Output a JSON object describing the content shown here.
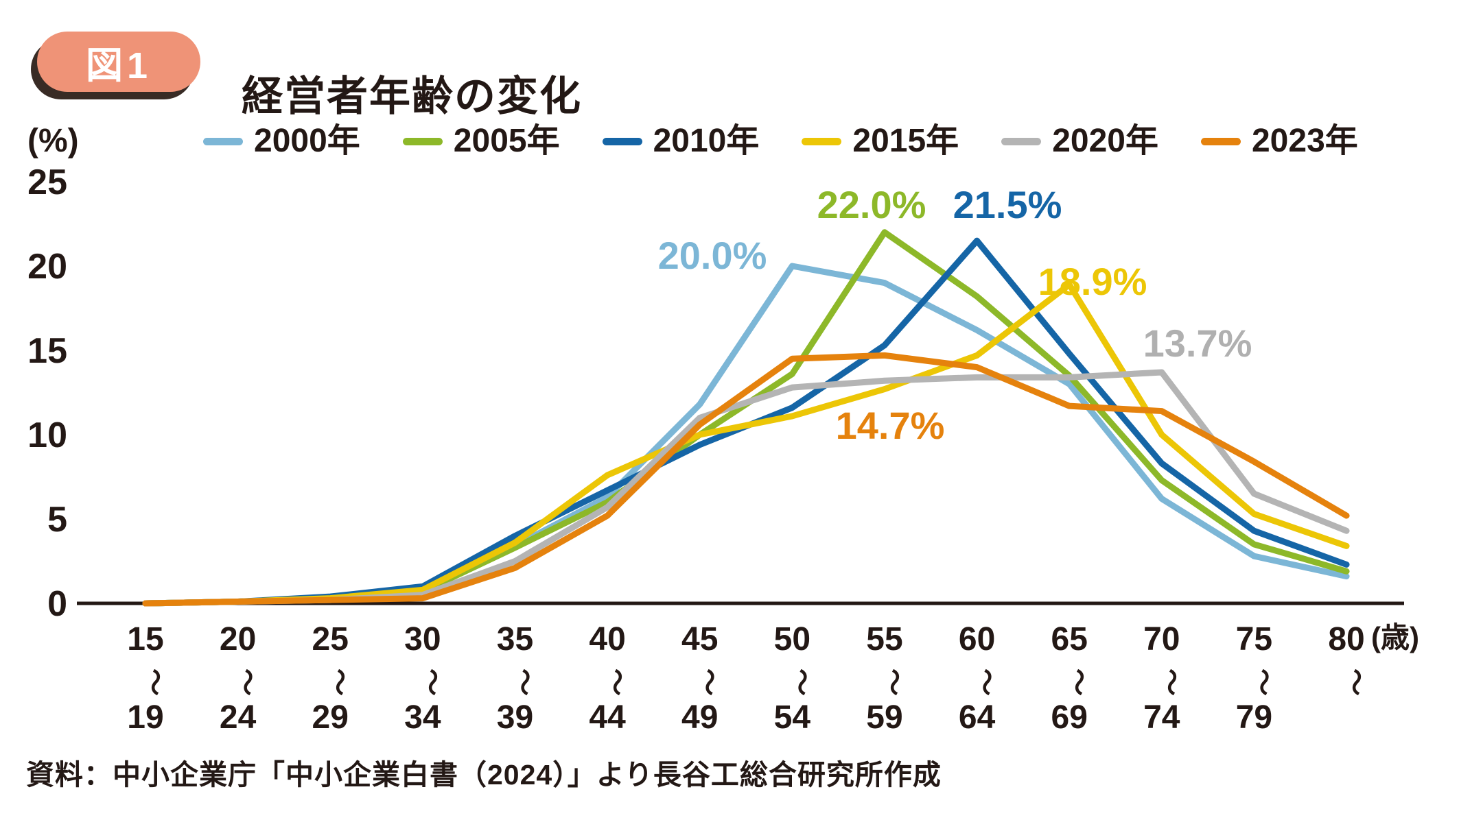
{
  "figure_badge": "図1",
  "title": "経営者年齢の変化",
  "source": "資料：中小企業庁「中小企業白書（2024）」より長谷工総合研究所作成",
  "y_axis": {
    "unit": "(%)",
    "ticks": [
      25,
      20,
      15,
      10,
      5,
      0
    ],
    "min": 0,
    "max": 25
  },
  "x_axis": {
    "unit": "(歳)",
    "range_symbol": "〜",
    "categories": [
      {
        "from": "15",
        "to": "19"
      },
      {
        "from": "20",
        "to": "24"
      },
      {
        "from": "25",
        "to": "29"
      },
      {
        "from": "30",
        "to": "34"
      },
      {
        "from": "35",
        "to": "39"
      },
      {
        "from": "40",
        "to": "44"
      },
      {
        "from": "45",
        "to": "49"
      },
      {
        "from": "50",
        "to": "54"
      },
      {
        "from": "55",
        "to": "59"
      },
      {
        "from": "60",
        "to": "64"
      },
      {
        "from": "65",
        "to": "69"
      },
      {
        "from": "70",
        "to": "74"
      },
      {
        "from": "75",
        "to": "79"
      },
      {
        "from": "80",
        "to": ""
      }
    ]
  },
  "chart_data": {
    "type": "line",
    "title": "経営者年齢の変化",
    "ylabel": "(%)",
    "xlabel": "(歳)",
    "ylim": [
      0,
      25
    ],
    "grid": false,
    "legend_position": "top",
    "categories": [
      "15〜19",
      "20〜24",
      "25〜29",
      "30〜34",
      "35〜39",
      "40〜44",
      "45〜49",
      "50〜54",
      "55〜59",
      "60〜64",
      "65〜69",
      "70〜74",
      "75〜79",
      "80〜"
    ],
    "series": [
      {
        "name": "2000年",
        "color": "#7cb6d6",
        "values": [
          0.0,
          0.1,
          0.3,
          0.7,
          3.4,
          6.3,
          11.8,
          20.0,
          19.0,
          16.2,
          13.0,
          6.2,
          2.8,
          1.6
        ]
      },
      {
        "name": "2005年",
        "color": "#8db829",
        "values": [
          0.0,
          0.1,
          0.3,
          0.7,
          3.3,
          6.0,
          10.0,
          13.6,
          22.0,
          18.2,
          13.5,
          7.3,
          3.5,
          1.9
        ]
      },
      {
        "name": "2010年",
        "color": "#1565a6",
        "values": [
          0.0,
          0.1,
          0.4,
          1.0,
          4.0,
          6.7,
          9.4,
          11.6,
          15.3,
          21.5,
          14.8,
          8.3,
          4.3,
          2.3
        ]
      },
      {
        "name": "2015年",
        "color": "#ecc606",
        "values": [
          0.0,
          0.1,
          0.3,
          0.8,
          3.6,
          7.6,
          10.0,
          11.1,
          12.7,
          14.7,
          18.9,
          10.0,
          5.3,
          3.4
        ]
      },
      {
        "name": "2020年",
        "color": "#b4b4b4",
        "values": [
          0.0,
          0.1,
          0.2,
          0.5,
          2.5,
          5.7,
          11.0,
          12.8,
          13.2,
          13.4,
          13.4,
          13.7,
          6.5,
          4.3
        ]
      },
      {
        "name": "2023年",
        "color": "#e5820d",
        "values": [
          0.0,
          0.1,
          0.2,
          0.3,
          2.1,
          5.2,
          10.6,
          14.5,
          14.7,
          14.0,
          11.7,
          11.4,
          8.4,
          5.2
        ]
      }
    ],
    "annotations": [
      {
        "text": "20.0%",
        "series": "2000年",
        "category": "50〜54",
        "value": 20.0,
        "color": "#7cb6d6"
      },
      {
        "text": "22.0%",
        "series": "2005年",
        "category": "55〜59",
        "value": 22.0,
        "color": "#8db829"
      },
      {
        "text": "21.5%",
        "series": "2010年",
        "category": "60〜64",
        "value": 21.5,
        "color": "#1565a6"
      },
      {
        "text": "18.9%",
        "series": "2015年",
        "category": "65〜69",
        "value": 18.9,
        "color": "#ecc606"
      },
      {
        "text": "13.7%",
        "series": "2020年",
        "category": "70〜74",
        "value": 13.7,
        "color": "#b0b0b0"
      },
      {
        "text": "14.7%",
        "series": "2023年",
        "category": "55〜59",
        "value": 14.7,
        "color": "#e5820d"
      }
    ]
  }
}
